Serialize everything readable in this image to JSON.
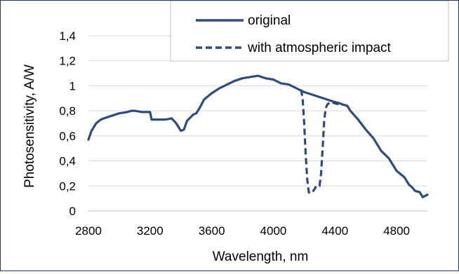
{
  "chart_data": {
    "type": "line",
    "title": "",
    "xlabel": "Wavelength, nm",
    "ylabel": "Photosensitivity, A/W",
    "xlim": [
      2800,
      5000
    ],
    "ylim": [
      0,
      1.4
    ],
    "x_ticks": [
      2800,
      3200,
      3600,
      4000,
      4400,
      4800
    ],
    "y_ticks": [
      0,
      0.2,
      0.4,
      0.6,
      0.8,
      1,
      1.2,
      1.4
    ],
    "x_tick_labels": [
      "2800",
      "3200",
      "3600",
      "4000",
      "4400",
      "4800"
    ],
    "y_tick_labels": [
      "0",
      "0,2",
      "0,4",
      "0,6",
      "0,8",
      "1",
      "1,2",
      "1,4"
    ],
    "grid": true,
    "legend_position": "top-right",
    "series_color": "#2f4b7c",
    "series": [
      {
        "name": "original",
        "style": "solid",
        "x": [
          2800,
          2820,
          2850,
          2880,
          2900,
          2950,
          3000,
          3050,
          3080,
          3100,
          3150,
          3180,
          3200,
          3210,
          3250,
          3300,
          3340,
          3370,
          3400,
          3420,
          3440,
          3480,
          3500,
          3520,
          3550,
          3580,
          3600,
          3650,
          3700,
          3750,
          3800,
          3850,
          3900,
          3950,
          4000,
          4050,
          4100,
          4150,
          4200,
          4250,
          4300,
          4350,
          4400,
          4430,
          4450,
          4480,
          4500,
          4550,
          4600,
          4650,
          4700,
          4750,
          4800,
          4850,
          4880,
          4900,
          4920,
          4950,
          4970,
          5000
        ],
        "y": [
          0.57,
          0.64,
          0.7,
          0.73,
          0.74,
          0.76,
          0.78,
          0.79,
          0.8,
          0.8,
          0.79,
          0.79,
          0.79,
          0.73,
          0.73,
          0.73,
          0.74,
          0.7,
          0.64,
          0.65,
          0.72,
          0.77,
          0.78,
          0.82,
          0.89,
          0.92,
          0.94,
          0.98,
          1.01,
          1.04,
          1.06,
          1.07,
          1.08,
          1.06,
          1.05,
          1.02,
          1.01,
          0.98,
          0.95,
          0.93,
          0.91,
          0.89,
          0.87,
          0.86,
          0.85,
          0.84,
          0.8,
          0.73,
          0.65,
          0.58,
          0.48,
          0.42,
          0.32,
          0.27,
          0.21,
          0.19,
          0.16,
          0.15,
          0.11,
          0.13
        ]
      },
      {
        "name": "with atmospheric impact",
        "style": "dashed",
        "x": [
          4180,
          4190,
          4200,
          4210,
          4220,
          4230,
          4240,
          4260,
          4280,
          4300,
          4310,
          4320,
          4330,
          4340,
          4350,
          4370,
          4400,
          4430,
          4450
        ],
        "y": [
          0.97,
          0.9,
          0.7,
          0.45,
          0.25,
          0.15,
          0.14,
          0.16,
          0.2,
          0.2,
          0.3,
          0.5,
          0.72,
          0.82,
          0.85,
          0.87,
          0.86,
          0.85,
          0.85
        ]
      }
    ]
  }
}
